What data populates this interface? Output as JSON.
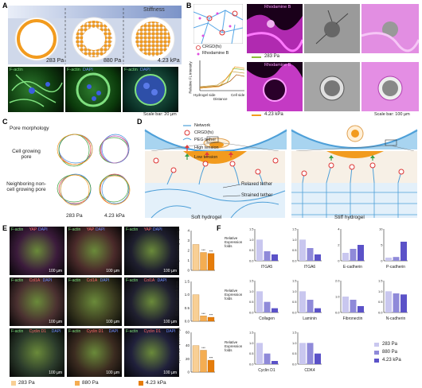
{
  "panels": {
    "A": "A",
    "B": "B",
    "C": "C",
    "D": "D",
    "E": "E",
    "F": "F"
  },
  "a": {
    "stiffness": "Stiffness",
    "conditions": [
      "283 Pa",
      "880 Pa",
      "4.23 kPa"
    ],
    "stain": "F-actin",
    "dapi": "DAPI",
    "scale": "Scale bar: 20 µm"
  },
  "b": {
    "legend": [
      "CRGD(fs)",
      "Rhodamine B"
    ],
    "ylabel": "Relative FL intensity",
    "xlabel": "Distance",
    "hydrogel_side": "Hydrogel side",
    "cell_side": "Cell side",
    "rhod": "Rhodamine B",
    "cond1": "283 Pa",
    "cond2": "4.23 kPa",
    "scale": "Scale bar: 100 µm"
  },
  "c": {
    "title": "Pore morphology",
    "row1": "Cell growing pore",
    "row2": "Neighboring non-cell growing pore",
    "cols": [
      "283 Pa",
      "4.23 kPa"
    ]
  },
  "d": {
    "legend": [
      "Network",
      "CRGD(fs)",
      "PEG tether",
      "High tension",
      "Low tension"
    ],
    "relaxed": "Relaxed tether",
    "strained": "Strained tether",
    "soft": "Soft hydrogel",
    "stiff": "Stiff hydrogel"
  },
  "e": {
    "rows": [
      [
        "F-actin",
        "YAP",
        "DAPI"
      ],
      [
        "F-actin",
        "Col1A",
        "DAPI"
      ],
      [
        "F-actin",
        "Cyclin D1",
        "DAPI"
      ]
    ],
    "scale": "100 µm",
    "ylabels": [
      "YAP (Nuclear/Cytoplasm)",
      "ECM/Cell growth area",
      "Cyclin D1+ percentage"
    ],
    "legend": [
      "283 Pa",
      "880 Pa",
      "4.23 kPa"
    ]
  },
  "chart_data": [
    {
      "type": "bar",
      "categories": [
        "283 Pa",
        "880 Pa",
        "4.23 kPa"
      ],
      "values": [
        2.6,
        1.8,
        1.7
      ],
      "ylim": [
        0,
        4
      ],
      "yticks": [
        "0",
        "1",
        "2",
        "3",
        "4"
      ],
      "ylabel": "YAP (Nuclear/Cytoplasm)",
      "annotations": [
        "",
        "***",
        "***"
      ]
    },
    {
      "type": "bar",
      "categories": [
        "283 Pa",
        "880 Pa",
        "4.23 kPa"
      ],
      "values": [
        1.0,
        0.2,
        0.15
      ],
      "ylim": [
        0,
        1.5
      ],
      "yticks": [
        "0.0",
        "0.5",
        "1.0",
        "1.5"
      ],
      "ylabel": "ECM/Cell growth area",
      "annotations": [
        "",
        "***",
        "***"
      ]
    },
    {
      "type": "bar",
      "categories": [
        "283 Pa",
        "880 Pa",
        "4.23 kPa"
      ],
      "values": [
        40,
        33,
        18
      ],
      "ylim": [
        0,
        60
      ],
      "yticks": [
        "0",
        "20",
        "40",
        "60"
      ],
      "ylabel": "Cyclin D1+ percentage",
      "annotations": [
        "",
        "***",
        "***"
      ]
    },
    {
      "type": "bar",
      "name": "ITGA5",
      "values": [
        1.0,
        0.45,
        0.3
      ],
      "ylim": [
        0,
        1.5
      ],
      "yticks": [
        "0.0",
        "0.5",
        "1.0",
        "1.5"
      ]
    },
    {
      "type": "bar",
      "name": "ITGA6",
      "values": [
        1.0,
        0.6,
        0.3
      ],
      "ylim": [
        0,
        1.5
      ],
      "yticks": [
        "0.0",
        "0.5",
        "1.0",
        "1.5"
      ]
    },
    {
      "type": "bar",
      "name": "E-cadherin",
      "values": [
        1.0,
        1.5,
        2.0
      ],
      "ylim": [
        0,
        4
      ],
      "yticks": [
        "0",
        "2",
        "4"
      ]
    },
    {
      "type": "bar",
      "name": "P-cadherin",
      "values": [
        1.0,
        1.2,
        6.0
      ],
      "ylim": [
        0,
        10
      ],
      "yticks": [
        "0",
        "5",
        "10"
      ]
    },
    {
      "type": "bar",
      "name": "Collagen",
      "values": [
        1.0,
        0.5,
        0.2
      ],
      "ylim": [
        0,
        1.5
      ],
      "yticks": [
        "0.0",
        "0.5",
        "1.0",
        "1.5"
      ]
    },
    {
      "type": "bar",
      "name": "Laminin",
      "values": [
        1.0,
        0.6,
        0.2
      ],
      "ylim": [
        0,
        1.5
      ],
      "yticks": [
        "0.0",
        "0.5",
        "1.0",
        "1.5"
      ]
    },
    {
      "type": "bar",
      "name": "Fibronectin",
      "values": [
        1.0,
        0.8,
        0.4
      ],
      "ylim": [
        0,
        2
      ],
      "yticks": [
        "0.0",
        "1.0",
        "2.0"
      ]
    },
    {
      "type": "bar",
      "name": "N-cadherin",
      "values": [
        1.0,
        0.9,
        0.85
      ],
      "ylim": [
        0,
        1.5
      ],
      "yticks": [
        "0.0",
        "0.5",
        "1.0",
        "1.5"
      ]
    },
    {
      "type": "bar",
      "name": "Cyclin D1",
      "values": [
        1.0,
        0.5,
        0.15
      ],
      "ylim": [
        0,
        1.5
      ],
      "yticks": [
        "0.0",
        "0.5",
        "1.0",
        "1.5"
      ]
    },
    {
      "type": "bar",
      "name": "CDK4",
      "values": [
        1.0,
        1.0,
        0.5
      ],
      "ylim": [
        0,
        1.5
      ],
      "yticks": [
        "0.0",
        "0.5",
        "1.0",
        "1.5"
      ]
    }
  ],
  "f": {
    "ylabel": "Relative Expression folds",
    "legend": [
      "283 Pa",
      "880 Pa",
      "4.23 kPa"
    ],
    "colors": [
      "#c9c7ef",
      "#8f8ad9",
      "#5b52c8"
    ]
  },
  "colors": {
    "orange": "#f29b1e",
    "magenta": "#e04ee0",
    "blue": "#2f5ea8",
    "green": "#3aa04a"
  }
}
